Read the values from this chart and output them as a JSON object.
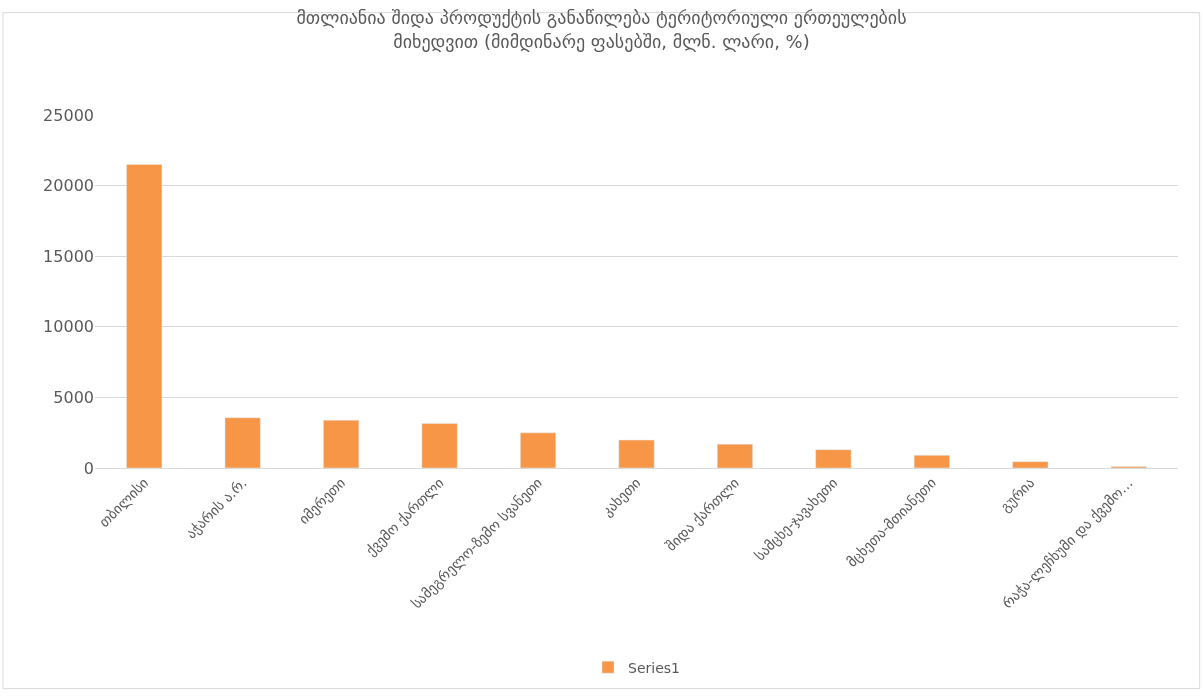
{
  "chart_data": {
    "type": "bar",
    "title": "მთლიანია შიდა პროდუქტის განაწილება ტერიტორიული ერთეულების\nმიხედვით (მიმდინარე ფასებში, მლნ. ლარი, %)",
    "categories": [
      "თბილისი",
      "აჭარის ა.რ.",
      "იმერეთი",
      "ქვემო ქართლი",
      "სამეგრელო-ზემო სვანეთი",
      "კახეთი",
      "შიდა ქართლი",
      "სამცხე-ჯავახეთი",
      "მცხეთა-მთიანეთი",
      "გურია",
      "რაჭა-ლეჩხუმი და ქვემო…"
    ],
    "series": [
      {
        "name": "Series1",
        "color": "#f79646",
        "values": [
          21500,
          3560,
          3390,
          3160,
          2490,
          1980,
          1690,
          1300,
          900,
          450,
          100
        ]
      }
    ],
    "ylim": [
      0,
      25000
    ],
    "yticks": [
      0,
      5000,
      10000,
      15000,
      20000,
      25000
    ],
    "grid": "y",
    "legend": "bottom"
  }
}
